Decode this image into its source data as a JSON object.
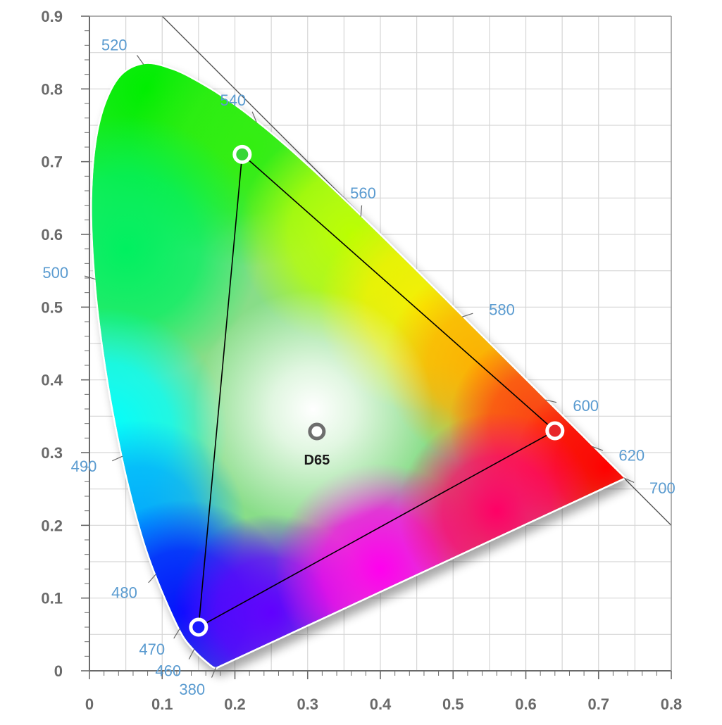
{
  "chart_data": {
    "type": "scatter",
    "title": "",
    "xlabel": "",
    "ylabel": "",
    "xlim": [
      0,
      0.8
    ],
    "ylim": [
      0,
      0.9
    ],
    "grid": true,
    "x_ticks": [
      "0",
      "0.1",
      "0.2",
      "0.3",
      "0.4",
      "0.5",
      "0.6",
      "0.7",
      "0.8"
    ],
    "y_ticks": [
      "0",
      "0.1",
      "0.2",
      "0.3",
      "0.4",
      "0.5",
      "0.6",
      "0.7",
      "0.8",
      "0.9"
    ],
    "spectral_locus": [
      [
        0.1741,
        0.005
      ],
      [
        0.1738,
        0.0049
      ],
      [
        0.1666,
        0.0089
      ],
      [
        0.144,
        0.0297
      ],
      [
        0.1241,
        0.0578
      ],
      [
        0.0913,
        0.1327
      ],
      [
        0.0687,
        0.2007
      ],
      [
        0.0454,
        0.295
      ],
      [
        0.0235,
        0.4127
      ],
      [
        0.0082,
        0.5384
      ],
      [
        0.0039,
        0.6548
      ],
      [
        0.0139,
        0.7502
      ],
      [
        0.0389,
        0.812
      ],
      [
        0.0743,
        0.8338
      ],
      [
        0.1142,
        0.8262
      ],
      [
        0.1547,
        0.8059
      ],
      [
        0.1929,
        0.7816
      ],
      [
        0.2296,
        0.7543
      ],
      [
        0.2658,
        0.7243
      ],
      [
        0.3016,
        0.6923
      ],
      [
        0.3373,
        0.6589
      ],
      [
        0.3731,
        0.6245
      ],
      [
        0.4087,
        0.5896
      ],
      [
        0.4441,
        0.5547
      ],
      [
        0.4788,
        0.5202
      ],
      [
        0.5125,
        0.4866
      ],
      [
        0.5448,
        0.4544
      ],
      [
        0.5752,
        0.4242
      ],
      [
        0.6029,
        0.3965
      ],
      [
        0.627,
        0.3725
      ],
      [
        0.6482,
        0.3514
      ],
      [
        0.6658,
        0.334
      ],
      [
        0.6801,
        0.3197
      ],
      [
        0.6915,
        0.3083
      ],
      [
        0.7006,
        0.2993
      ],
      [
        0.7079,
        0.292
      ],
      [
        0.714,
        0.2859
      ],
      [
        0.719,
        0.2809
      ],
      [
        0.723,
        0.277
      ],
      [
        0.7347,
        0.2653
      ]
    ],
    "wavelength_labels": [
      {
        "label": "380",
        "x": 0.1741,
        "y": 0.005
      },
      {
        "label": "460",
        "x": 0.144,
        "y": 0.0297
      },
      {
        "label": "470",
        "x": 0.1241,
        "y": 0.0578
      },
      {
        "label": "480",
        "x": 0.0913,
        "y": 0.1327
      },
      {
        "label": "490",
        "x": 0.0454,
        "y": 0.295
      },
      {
        "label": "500",
        "x": 0.0082,
        "y": 0.5384
      },
      {
        "label": "520",
        "x": 0.0743,
        "y": 0.8338
      },
      {
        "label": "540",
        "x": 0.2296,
        "y": 0.7543
      },
      {
        "label": "560",
        "x": 0.3731,
        "y": 0.6245
      },
      {
        "label": "580",
        "x": 0.5125,
        "y": 0.4866
      },
      {
        "label": "600",
        "x": 0.627,
        "y": 0.3725
      },
      {
        "label": "620",
        "x": 0.6915,
        "y": 0.3083
      },
      {
        "label": "700",
        "x": 0.7347,
        "y": 0.2653
      }
    ],
    "gamut_primaries": [
      {
        "name": "red",
        "x": 0.64,
        "y": 0.33,
        "color": "#e8262a"
      },
      {
        "name": "green",
        "x": 0.21,
        "y": 0.71,
        "color": "#37d637"
      },
      {
        "name": "blue",
        "x": 0.15,
        "y": 0.06,
        "color": "#1a1aff"
      }
    ],
    "white_point": {
      "label": "D65",
      "x": 0.3127,
      "y": 0.329,
      "color": "#6e6e6e"
    },
    "boundary_line": [
      [
        0.1,
        0.9
      ],
      [
        0.8,
        0.2
      ]
    ],
    "colors": {
      "grid": "#d6d6d6",
      "axis": "#6a6a6a",
      "wavelength_label": "#5a9bd0",
      "gamut_line": "#000000"
    }
  }
}
